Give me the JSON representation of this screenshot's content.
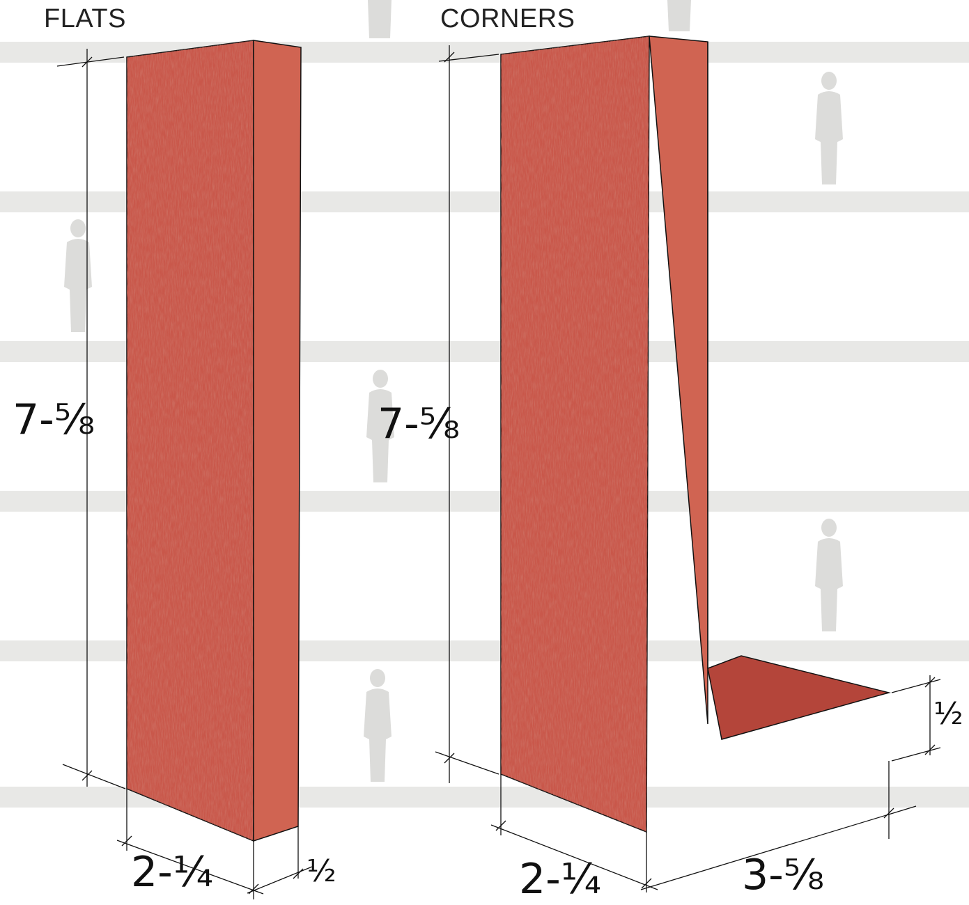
{
  "headings": {
    "flats": "FLATS",
    "corners": "CORNERS"
  },
  "flats": {
    "height_dim": "7-⅝",
    "width_dim": "2-¼",
    "depth_dim": "½"
  },
  "corners": {
    "height_dim": "7-⅝",
    "width_dim": "2-¼",
    "return_dim": "3-⅝",
    "thickness_dim": "½"
  },
  "colors": {
    "brick_face": "#c9574a",
    "brick_side": "#d06452",
    "brick_top": "#b4453a",
    "texture": "#a8362d",
    "background_band": "#e4e4e2",
    "line": "#111111"
  }
}
